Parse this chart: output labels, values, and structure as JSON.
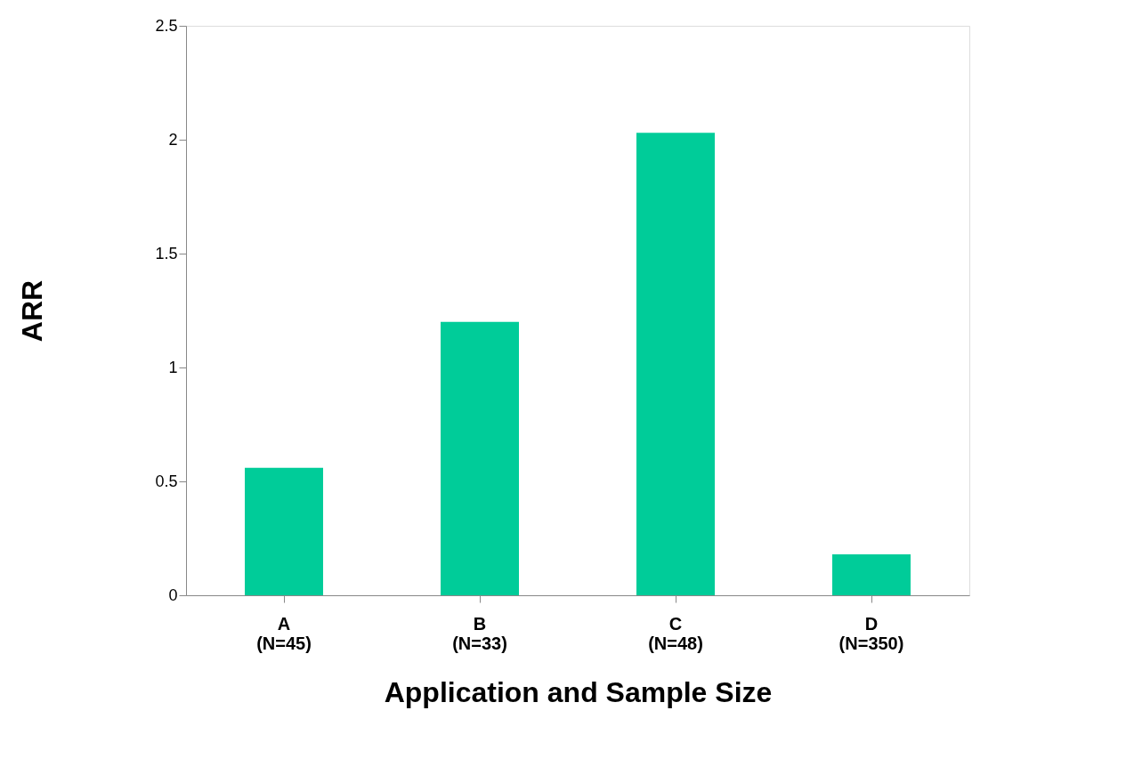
{
  "chart_data": {
    "type": "bar",
    "xlabel": "Application and Sample Size",
    "ylabel": "ARR",
    "categories": [
      "A\n(N=45)",
      "B\n(N=33)",
      "C\n(N=48)",
      "D\n(N=350)"
    ],
    "values": [
      0.56,
      1.2,
      2.03,
      0.18
    ],
    "color": "#00cc99",
    "ylim": [
      0,
      2.5
    ],
    "yticks": [
      0,
      0.5,
      1,
      1.5,
      2,
      2.5
    ],
    "grid": false
  }
}
